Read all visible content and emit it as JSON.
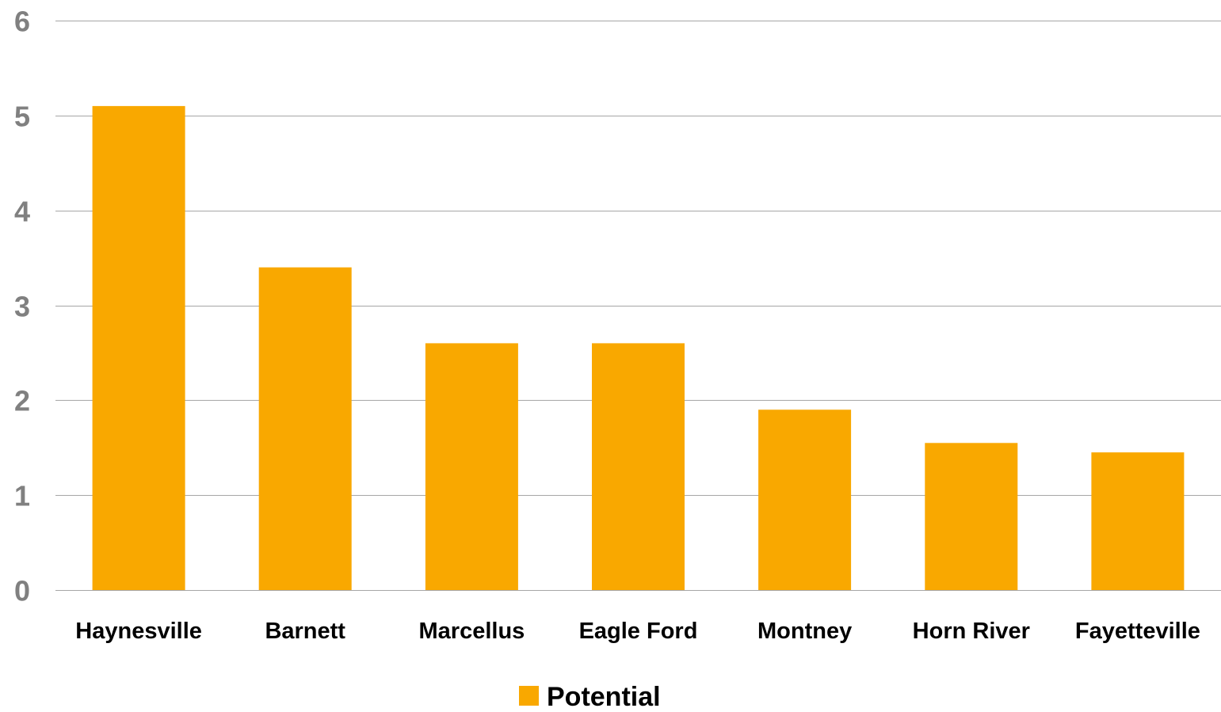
{
  "chart_data": {
    "type": "bar",
    "title": "",
    "xlabel": "",
    "ylabel": "",
    "categories": [
      "Haynesville",
      "Barnett",
      "Marcellus",
      "Eagle Ford",
      "Montney",
      "Horn River",
      "Fayetteville"
    ],
    "series": [
      {
        "name": "Potential",
        "values": [
          5.1,
          3.4,
          2.6,
          2.6,
          1.9,
          1.55,
          1.45
        ],
        "color": "#F9A800"
      }
    ],
    "ylim": [
      0,
      6
    ],
    "yticks": [
      "0",
      "1",
      "2",
      "3",
      "4",
      "5",
      "6"
    ],
    "grid": true,
    "gridline_color": "#A6A6A6",
    "legend_placement": "bottom-center"
  }
}
